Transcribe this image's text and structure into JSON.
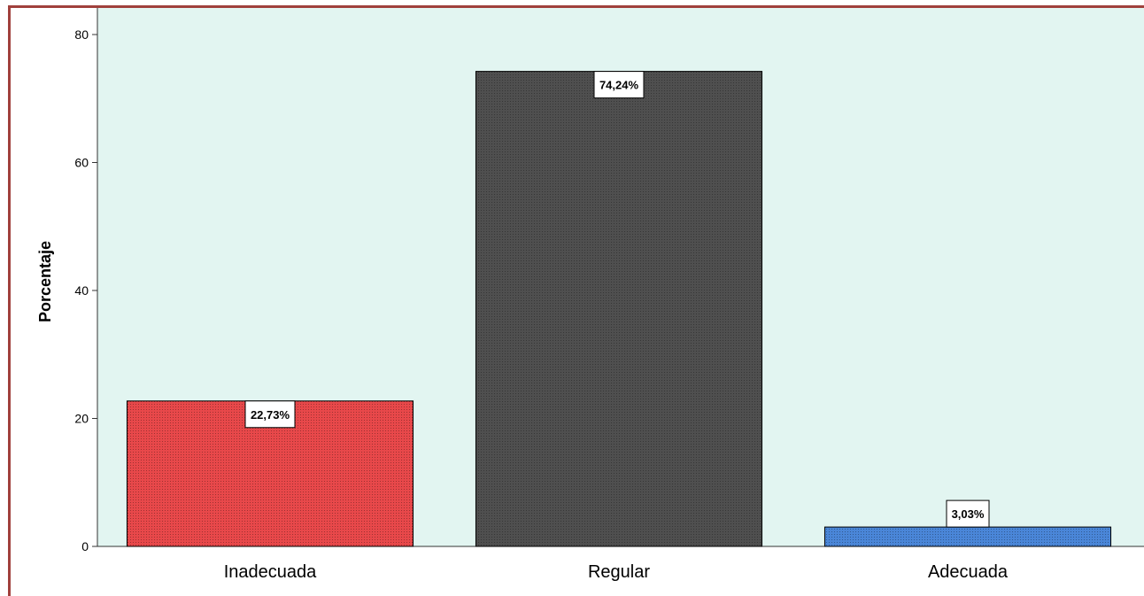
{
  "chart_data": {
    "type": "bar",
    "categories": [
      "Inadecuada",
      "Regular",
      "Adecuada"
    ],
    "values": [
      22.73,
      74.24,
      3.03
    ],
    "data_labels": [
      "22,73%",
      "74,24%",
      "3,03%"
    ],
    "colors": [
      "#e8484a",
      "#4f4f4f",
      "#4a86d8"
    ],
    "title": "",
    "xlabel": "",
    "ylabel": "Porcentaje",
    "ylim": [
      0,
      80
    ],
    "yticks": [
      0,
      20,
      40,
      60,
      80
    ],
    "background": "#e2f5f1",
    "grid": false
  }
}
